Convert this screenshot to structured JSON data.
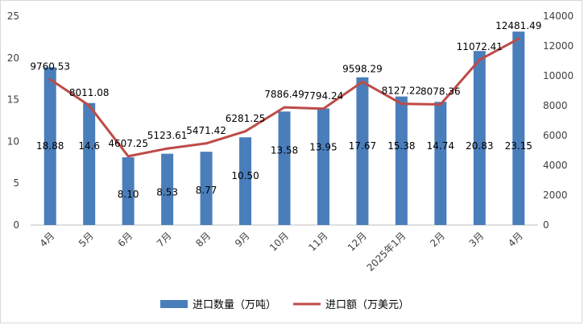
{
  "chart_data": {
    "type": "bar",
    "categories": [
      "4月",
      "5月",
      "6月",
      "7月",
      "8月",
      "9月",
      "10月",
      "11月",
      "12月",
      "2025年1月",
      "2月",
      "3月",
      "4月"
    ],
    "series": [
      {
        "name": "进口数量（万吨）",
        "type": "bar",
        "axis": "left",
        "color": "#4a7ebb",
        "values": [
          18.88,
          14.6,
          8.1,
          8.53,
          8.77,
          10.5,
          13.58,
          13.95,
          17.67,
          15.38,
          14.74,
          20.83,
          23.15
        ],
        "labels": [
          "18.88",
          "14.6",
          "8.10",
          "8.53",
          "8.77",
          "10.50",
          "13.58",
          "13.95",
          "17.67",
          "15.38",
          "14.74",
          "20.83",
          "23.15"
        ]
      },
      {
        "name": "进口额（万美元）",
        "type": "line",
        "axis": "right",
        "color": "#be4b48",
        "values": [
          9760.53,
          8011.08,
          4607.25,
          5123.61,
          5471.42,
          6281.25,
          7886.49,
          7794.24,
          9598.29,
          8127.22,
          8078.36,
          11072.41,
          12481.49
        ],
        "labels": [
          "9760.53",
          "8011.08",
          "4607.25",
          "5123.61",
          "5471.42",
          "6281.25",
          "7886.49",
          "7794.24",
          "9598.29",
          "8127.22",
          "8078.36",
          "11072.41",
          "12481.49"
        ]
      }
    ],
    "y_left": {
      "ylim": [
        0,
        25
      ],
      "ticks": [
        "0",
        "5",
        "10",
        "15",
        "20",
        "25"
      ]
    },
    "y_right": {
      "ylim": [
        0,
        14000
      ],
      "ticks": [
        "0",
        "2000",
        "4000",
        "6000",
        "8000",
        "10000",
        "12000",
        "14000"
      ]
    },
    "grid": false,
    "legend_position": "bottom"
  }
}
